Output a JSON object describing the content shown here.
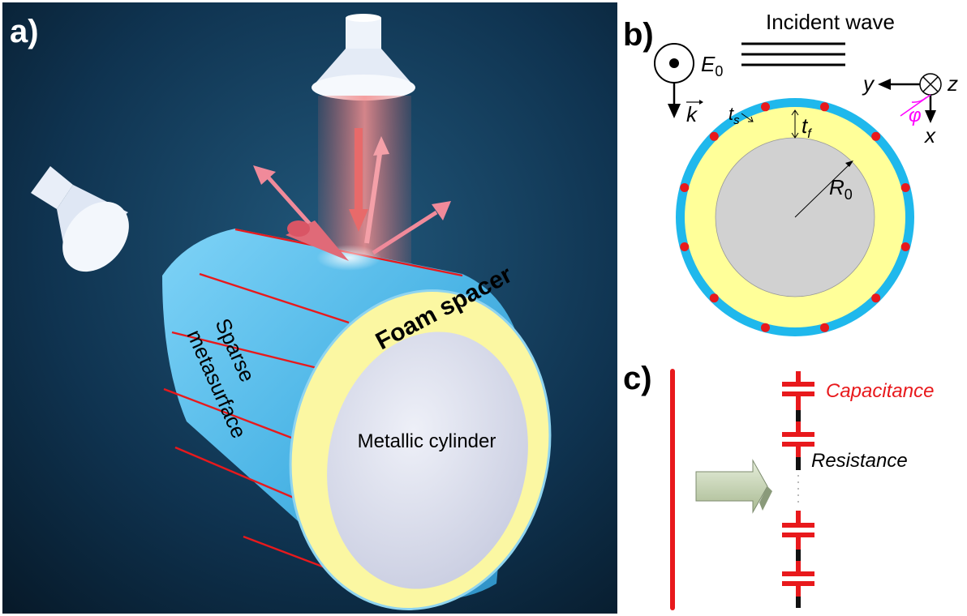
{
  "panels": {
    "a": {
      "label": "a)",
      "metallic_cylinder": "Metallic cylinder",
      "foam_spacer": "Foam spacer",
      "sparse_line1": "Sparse",
      "sparse_line2": "metasurface"
    },
    "b": {
      "label": "b)",
      "incident_wave": "Incident wave",
      "e0_sym": "E",
      "e0_sub": "0",
      "k_sym": "k",
      "ts_sym": "t",
      "ts_sub": "s",
      "tf_sym": "t",
      "tf_sub": "f",
      "r0_sym": "R",
      "r0_sub": "0",
      "axis_y": "y",
      "axis_z": "z",
      "axis_x": "x",
      "phi": "φ"
    },
    "c": {
      "label": "c)",
      "capacitance": "Capacitance",
      "resistance": "Resistance"
    }
  },
  "colors": {
    "background_dark": "#0a2236",
    "cylinder_blue": "#4ab4e8",
    "foam_yellow": "#ffff99",
    "metal_gray": "#d1d1d1",
    "strip_red": "#e8191c",
    "ring_blue": "#1fb8ec",
    "beam_pink": "#f08080",
    "arrow_gray": "#c5d3b5",
    "phi_magenta": "#ff00ff"
  }
}
